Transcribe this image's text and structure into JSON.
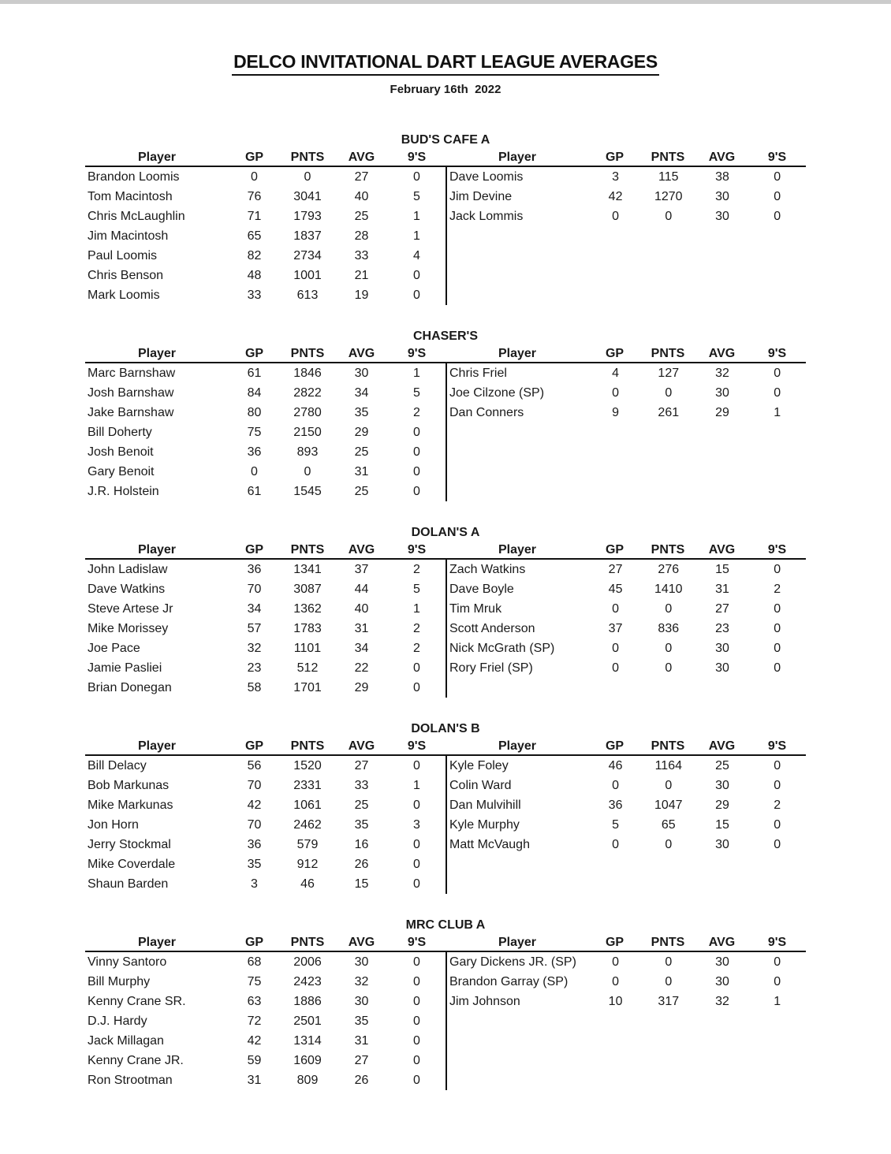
{
  "page": {
    "title": "DELCO INVITATIONAL DART LEAGUE AVERAGES",
    "date": "February 16th  2022"
  },
  "columns": [
    "Player",
    "GP",
    "PNTS",
    "AVG",
    "9'S"
  ],
  "sections": [
    {
      "name": "BUD'S CAFE A",
      "left": [
        [
          "Brandon Loomis",
          "0",
          "0",
          "27",
          "0"
        ],
        [
          "Tom Macintosh",
          "76",
          "3041",
          "40",
          "5"
        ],
        [
          "Chris McLaughlin",
          "71",
          "1793",
          "25",
          "1"
        ],
        [
          "Jim Macintosh",
          "65",
          "1837",
          "28",
          "1"
        ],
        [
          "Paul Loomis",
          "82",
          "2734",
          "33",
          "4"
        ],
        [
          "Chris Benson",
          "48",
          "1001",
          "21",
          "0"
        ],
        [
          "Mark Loomis",
          "33",
          "613",
          "19",
          "0"
        ]
      ],
      "right": [
        [
          "Dave Loomis",
          "3",
          "115",
          "38",
          "0"
        ],
        [
          "Jim Devine",
          "42",
          "1270",
          "30",
          "0"
        ],
        [
          "Jack Lommis",
          "0",
          "0",
          "30",
          "0"
        ]
      ]
    },
    {
      "name": "CHASER'S",
      "left": [
        [
          "Marc Barnshaw",
          "61",
          "1846",
          "30",
          "1"
        ],
        [
          "Josh Barnshaw",
          "84",
          "2822",
          "34",
          "5"
        ],
        [
          "Jake Barnshaw",
          "80",
          "2780",
          "35",
          "2"
        ],
        [
          "Bill Doherty",
          "75",
          "2150",
          "29",
          "0"
        ],
        [
          "Josh Benoit",
          "36",
          "893",
          "25",
          "0"
        ],
        [
          "Gary Benoit",
          "0",
          "0",
          "31",
          "0"
        ],
        [
          "J.R. Holstein",
          "61",
          "1545",
          "25",
          "0"
        ]
      ],
      "right": [
        [
          "Chris Friel",
          "4",
          "127",
          "32",
          "0"
        ],
        [
          "Joe Cilzone (SP)",
          "0",
          "0",
          "30",
          "0"
        ],
        [
          "Dan Conners",
          "9",
          "261",
          "29",
          "1"
        ]
      ]
    },
    {
      "name": "DOLAN'S A",
      "left": [
        [
          "John Ladislaw",
          "36",
          "1341",
          "37",
          "2"
        ],
        [
          "Dave Watkins",
          "70",
          "3087",
          "44",
          "5"
        ],
        [
          "Steve Artese Jr",
          "34",
          "1362",
          "40",
          "1"
        ],
        [
          "Mike Morissey",
          "57",
          "1783",
          "31",
          "2"
        ],
        [
          "Joe Pace",
          "32",
          "1101",
          "34",
          "2"
        ],
        [
          "Jamie Pasliei",
          "23",
          "512",
          "22",
          "0"
        ],
        [
          "Brian Donegan",
          "58",
          "1701",
          "29",
          "0"
        ]
      ],
      "right": [
        [
          "Zach Watkins",
          "27",
          "276",
          "15",
          "0"
        ],
        [
          "Dave Boyle",
          "45",
          "1410",
          "31",
          "2"
        ],
        [
          "Tim Mruk",
          "0",
          "0",
          "27",
          "0"
        ],
        [
          "Scott Anderson",
          "37",
          "836",
          "23",
          "0"
        ],
        [
          "Nick McGrath (SP)",
          "0",
          "0",
          "30",
          "0"
        ],
        [
          "Rory Friel (SP)",
          "0",
          "0",
          "30",
          "0"
        ]
      ]
    },
    {
      "name": "DOLAN'S B",
      "left": [
        [
          "Bill Delacy",
          "56",
          "1520",
          "27",
          "0"
        ],
        [
          "Bob Markunas",
          "70",
          "2331",
          "33",
          "1"
        ],
        [
          "Mike Markunas",
          "42",
          "1061",
          "25",
          "0"
        ],
        [
          "Jon Horn",
          "70",
          "2462",
          "35",
          "3"
        ],
        [
          "Jerry Stockmal",
          "36",
          "579",
          "16",
          "0"
        ],
        [
          "Mike Coverdale",
          "35",
          "912",
          "26",
          "0"
        ],
        [
          "Shaun Barden",
          "3",
          "46",
          "15",
          "0"
        ]
      ],
      "right": [
        [
          "Kyle Foley",
          "46",
          "1164",
          "25",
          "0"
        ],
        [
          "Colin Ward",
          "0",
          "0",
          "30",
          "0"
        ],
        [
          "Dan Mulvihill",
          "36",
          "1047",
          "29",
          "2"
        ],
        [
          "Kyle Murphy",
          "5",
          "65",
          "15",
          "0"
        ],
        [
          "Matt McVaugh",
          "0",
          "0",
          "30",
          "0"
        ]
      ]
    },
    {
      "name": "MRC CLUB A",
      "left": [
        [
          "Vinny Santoro",
          "68",
          "2006",
          "30",
          "0"
        ],
        [
          "Bill Murphy",
          "75",
          "2423",
          "32",
          "0"
        ],
        [
          "Kenny Crane SR.",
          "63",
          "1886",
          "30",
          "0"
        ],
        [
          "D.J. Hardy",
          "72",
          "2501",
          "35",
          "0"
        ],
        [
          "Jack Millagan",
          "42",
          "1314",
          "31",
          "0"
        ],
        [
          "Kenny Crane JR.",
          "59",
          "1609",
          "27",
          "0"
        ],
        [
          "Ron Strootman",
          "31",
          "809",
          "26",
          "0"
        ]
      ],
      "right": [
        [
          "Gary Dickens JR. (SP)",
          "0",
          "0",
          "30",
          "0"
        ],
        [
          "Brandon Garray (SP)",
          "0",
          "0",
          "30",
          "0"
        ],
        [
          "Jim Johnson",
          "10",
          "317",
          "32",
          "1"
        ]
      ]
    }
  ]
}
